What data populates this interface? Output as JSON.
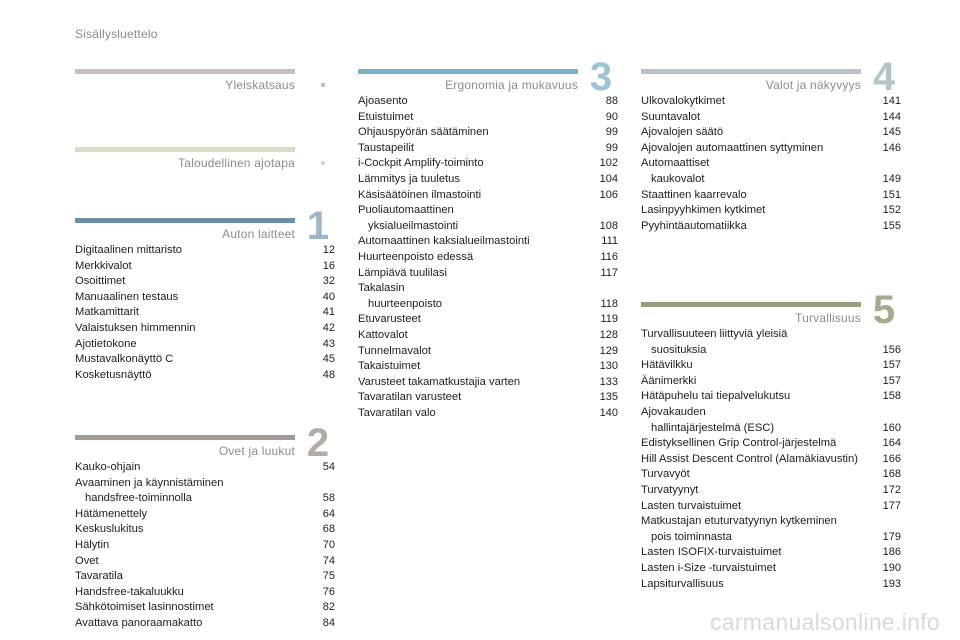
{
  "header": {
    "title": "Sisällysluettelo"
  },
  "sections": [
    {
      "id": "yleiskatsaus",
      "title": "Yleiskatsaus",
      "number": "",
      "color": "#c7bdc5",
      "accent": "#c7bdc5",
      "entries": []
    },
    {
      "id": "taloudellinen",
      "title": "Taloudellinen ajotapa",
      "number": "",
      "color": "#dcdcc4",
      "accent": "#dcdcc4",
      "entries": []
    },
    {
      "id": "auton-laitteet",
      "title": "Auton laitteet",
      "number": "1",
      "color": "#6b8fa5",
      "accent": "#9cb6c7",
      "entries": [
        {
          "line1": "Digitaalinen mittaristo",
          "line2": "",
          "page": "12"
        },
        {
          "line1": "Merkkivalot",
          "line2": "",
          "page": "16"
        },
        {
          "line1": "Osoittimet",
          "line2": "",
          "page": "32"
        },
        {
          "line1": "Manuaalinen testaus",
          "line2": "",
          "page": "40"
        },
        {
          "line1": "Matkamittarit",
          "line2": "",
          "page": "41"
        },
        {
          "line1": "Valaistuksen himmennin",
          "line2": "",
          "page": "42"
        },
        {
          "line1": "Ajotietokone",
          "line2": "",
          "page": "43"
        },
        {
          "line1": "Mustavalkonäyttö C",
          "line2": "",
          "page": "45"
        },
        {
          "line1": "Kosketusnäyttö",
          "line2": "",
          "page": "48"
        }
      ]
    },
    {
      "id": "ovet-ja-luukut",
      "title": "Ovet ja luukut",
      "number": "2",
      "color": "#a39a94",
      "accent": "#b4aba6",
      "entries": [
        {
          "line1": "Kauko-ohjain",
          "line2": "",
          "page": "54"
        },
        {
          "line1": "Avaaminen ja käynnistäminen",
          "line2": "handsfree-toiminnolla",
          "page": "58"
        },
        {
          "line1": "Hätämenettely",
          "line2": "",
          "page": "64"
        },
        {
          "line1": "Keskuslukitus",
          "line2": "",
          "page": "68"
        },
        {
          "line1": "Hälytin",
          "line2": "",
          "page": "70"
        },
        {
          "line1": "Ovet",
          "line2": "",
          "page": "74"
        },
        {
          "line1": "Tavaratila",
          "line2": "",
          "page": "75"
        },
        {
          "line1": "Handsfree-takaluukku",
          "line2": "",
          "page": "76"
        },
        {
          "line1": "Sähkötoimiset lasinnostimet",
          "line2": "",
          "page": "82"
        },
        {
          "line1": "Avattava panoraamakatto",
          "line2": "",
          "page": "84"
        }
      ]
    },
    {
      "id": "ergonomia",
      "title": "Ergonomia ja mukavuus",
      "number": "3",
      "color": "#7fb0c9",
      "accent": "#9cc3d6",
      "entries": [
        {
          "line1": "Ajoasento",
          "line2": "",
          "page": "88"
        },
        {
          "line1": "Etuistuimet",
          "line2": "",
          "page": "90"
        },
        {
          "line1": "Ohjauspyörän säätäminen",
          "line2": "",
          "page": "99"
        },
        {
          "line1": "Taustapeilit",
          "line2": "",
          "page": "99"
        },
        {
          "line1": "i-Cockpit Amplify-toiminto",
          "line2": "",
          "page": "102"
        },
        {
          "line1": "Lämmitys ja tuuletus",
          "line2": "",
          "page": "104"
        },
        {
          "line1": "Käsisäätöinen ilmastointi",
          "line2": "",
          "page": "106"
        },
        {
          "line1": "Puoliautomaattinen",
          "line2": "yksialueilmastointi",
          "page": "108"
        },
        {
          "line1": "Automaattinen kaksialueilmastointi",
          "line2": "",
          "page": "111"
        },
        {
          "line1": "Huurteenpoisto edessä",
          "line2": "",
          "page": "116"
        },
        {
          "line1": "Lämpiävä tuulilasi",
          "line2": "",
          "page": "117"
        },
        {
          "line1": "Takalasin",
          "line2": "huurteenpoisto",
          "page": "118"
        },
        {
          "line1": "Etuvarusteet",
          "line2": "",
          "page": "119"
        },
        {
          "line1": "Kattovalot",
          "line2": "",
          "page": "128"
        },
        {
          "line1": "Tunnelmavalot",
          "line2": "",
          "page": "129"
        },
        {
          "line1": "Takaistuimet",
          "line2": "",
          "page": "130"
        },
        {
          "line1": "Varusteet takamatkustajia varten",
          "line2": "",
          "page": "133"
        },
        {
          "line1": "Tavaratilan varusteet",
          "line2": "",
          "page": "135"
        },
        {
          "line1": "Tavaratilan valo",
          "line2": "",
          "page": "140"
        }
      ]
    },
    {
      "id": "valot",
      "title": "Valot ja näkyvyys",
      "number": "4",
      "color": "#b4c4c9",
      "accent": "#b4c4c9",
      "entries": [
        {
          "line1": "Ulkovalokytkimet",
          "line2": "",
          "page": "141"
        },
        {
          "line1": "Suuntavalot",
          "line2": "",
          "page": "144"
        },
        {
          "line1": "Ajovalojen säätö",
          "line2": "",
          "page": "145"
        },
        {
          "line1": "Ajovalojen automaattinen syttyminen",
          "line2": "",
          "page": "146"
        },
        {
          "line1": "Automaattiset",
          "line2": "kaukovalot",
          "page": "149"
        },
        {
          "line1": "Staattinen kaarrevalo",
          "line2": "",
          "page": "151"
        },
        {
          "line1": "Lasinpyyhkimen kytkimet",
          "line2": "",
          "page": "152"
        },
        {
          "line1": "Pyyhintäautomatiikka",
          "line2": "",
          "page": "155"
        }
      ]
    },
    {
      "id": "turvallisuus",
      "title": "Turvallisuus",
      "number": "5",
      "color": "#9a9c80",
      "accent": "#a8aa8e",
      "entries": [
        {
          "line1": "Turvallisuuteen liittyviä yleisiä",
          "line2": "suosituksia",
          "page": "156"
        },
        {
          "line1": "Hätävilkku",
          "line2": "",
          "page": "157"
        },
        {
          "line1": "Äänimerkki",
          "line2": "",
          "page": "157"
        },
        {
          "line1": "Hätäpuhelu tai tiepalvelukutsu",
          "line2": "",
          "page": "158"
        },
        {
          "line1": "Ajovakauden",
          "line2": "hallintajärjestelmä (ESC)",
          "page": "160"
        },
        {
          "line1": "Edistyksellinen Grip Control-järjestelmä",
          "line2": "",
          "page": "164"
        },
        {
          "line1": "Hill Assist Descent Control (Alamäkiavustin)",
          "line2": "",
          "page": "166"
        },
        {
          "line1": "Turvavyöt",
          "line2": "",
          "page": "168"
        },
        {
          "line1": "Turvatyynyt",
          "line2": "",
          "page": "172"
        },
        {
          "line1": "Lasten turvaistuimet",
          "line2": "",
          "page": "177"
        },
        {
          "line1": "Matkustajan etuturvatyynyn kytkeminen",
          "line2": "pois toiminnasta",
          "page": "179"
        },
        {
          "line1": "Lasten ISOFIX-turvaistuimet",
          "line2": "",
          "page": "186"
        },
        {
          "line1": "Lasten i-Size -turvaistuimet",
          "line2": "",
          "page": "190"
        },
        {
          "line1": "Lapsiturvallisuus",
          "line2": "",
          "page": "193"
        }
      ]
    }
  ],
  "watermark": {
    "text": "carmanualsonline.info"
  }
}
